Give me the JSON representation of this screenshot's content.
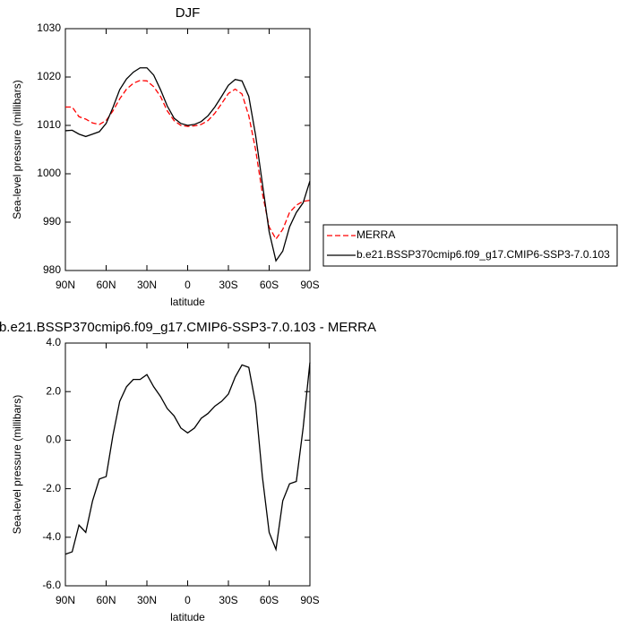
{
  "chart_data": [
    {
      "type": "line",
      "title": "DJF",
      "xlabel": "latitude",
      "ylabel": "Sea-level pressure (millibars)",
      "x": [
        90,
        85,
        80,
        75,
        70,
        65,
        60,
        55,
        50,
        45,
        40,
        35,
        30,
        25,
        20,
        15,
        10,
        5,
        0,
        -5,
        -10,
        -15,
        -20,
        -25,
        -30,
        -35,
        -40,
        -45,
        -50,
        -55,
        -60,
        -65,
        -70,
        -75,
        -80,
        -85,
        -90
      ],
      "series": [
        {
          "name": "MERRA",
          "color": "#ff0000",
          "dashed": true,
          "values": [
            1013.8,
            1013.8,
            1011.8,
            1011.3,
            1010.5,
            1010.2,
            1011,
            1013,
            1015.5,
            1017.5,
            1018.7,
            1019.3,
            1019.2,
            1018,
            1016,
            1013,
            1011,
            1010,
            1009.8,
            1009.9,
            1010.2,
            1011,
            1012.5,
            1014.5,
            1016.6,
            1017.5,
            1016.5,
            1012,
            1005,
            996,
            989,
            986.5,
            988.5,
            992,
            993.5,
            994.3,
            994.5
          ]
        },
        {
          "name": "b.e21.BSSP370cmip6.f09_g17.CMIP6-SSP3-7.0.103",
          "color": "#000000",
          "dashed": false,
          "values": [
            1008.9,
            1009,
            1008.2,
            1007.7,
            1008.2,
            1008.7,
            1010.4,
            1013.7,
            1017.4,
            1019.6,
            1021,
            1021.9,
            1021.9,
            1020.4,
            1017.4,
            1014,
            1011.5,
            1010.4,
            1010,
            1010.2,
            1010.8,
            1012,
            1013.8,
            1016,
            1018.3,
            1019.5,
            1019.2,
            1016,
            1008,
            998,
            988,
            982,
            984,
            989,
            992,
            994,
            998.5
          ]
        }
      ],
      "xlim": [
        90,
        -90
      ],
      "xticks": [
        {
          "value": 90,
          "label": "90N"
        },
        {
          "value": 60,
          "label": "60N"
        },
        {
          "value": 30,
          "label": "30N"
        },
        0,
        {
          "value": -30,
          "label": "30S"
        },
        {
          "value": -60,
          "label": "60S"
        },
        {
          "value": -90,
          "label": "90S"
        }
      ],
      "ylim": [
        980,
        1030
      ],
      "yticks": [
        980,
        990,
        1000,
        1010,
        1020,
        1030
      ]
    },
    {
      "type": "line",
      "title": "b.e21.BSSP370cmip6.f09_g17.CMIP6-SSP3-7.0.103 - MERRA",
      "xlabel": "latitude",
      "ylabel": "Sea-level pressure (millibars)",
      "x": [
        90,
        85,
        80,
        75,
        70,
        65,
        60,
        55,
        50,
        45,
        40,
        35,
        30,
        25,
        20,
        15,
        10,
        5,
        0,
        -5,
        -10,
        -15,
        -20,
        -25,
        -30,
        -35,
        -40,
        -45,
        -50,
        -55,
        -60,
        -65,
        -70,
        -75,
        -80,
        -85,
        -90
      ],
      "values": [
        -4.7,
        -4.6,
        -3.5,
        -3.8,
        -2.5,
        -1.6,
        -1.5,
        0.2,
        1.6,
        2.2,
        2.5,
        2.5,
        2.7,
        2.2,
        1.8,
        1.3,
        1.0,
        0.5,
        0.3,
        0.5,
        0.9,
        1.1,
        1.4,
        1.6,
        1.9,
        2.6,
        3.1,
        3.0,
        1.5,
        -1.5,
        -3.8,
        -4.5,
        -2.5,
        -1.8,
        -1.7,
        0.5,
        3.2
      ],
      "color": "#000000",
      "xlim": [
        90,
        -90
      ],
      "xticks": [
        {
          "value": 90,
          "label": "90N"
        },
        {
          "value": 60,
          "label": "60N"
        },
        {
          "value": 30,
          "label": "30N"
        },
        0,
        {
          "value": -30,
          "label": "30S"
        },
        {
          "value": -60,
          "label": "60S"
        },
        {
          "value": -90,
          "label": "90S"
        }
      ],
      "ylim": [
        -6,
        4
      ],
      "yticks": [
        {
          "value": -6,
          "label": "-6.0"
        },
        {
          "value": -4,
          "label": "-4.0"
        },
        {
          "value": -2,
          "label": "-2.0"
        },
        {
          "value": 0,
          "label": "0.0"
        },
        {
          "value": 2,
          "label": "2.0"
        },
        {
          "value": 4,
          "label": "4.0"
        }
      ]
    }
  ]
}
